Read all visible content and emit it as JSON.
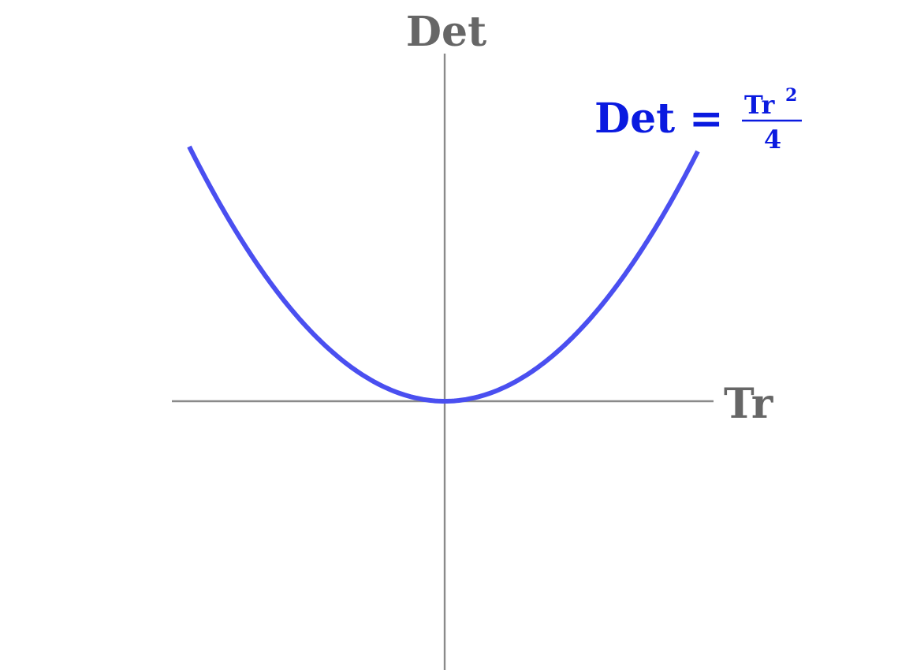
{
  "axes": {
    "x_label": "Tr",
    "y_label": "Det"
  },
  "curve": {
    "label_lhs": "Det",
    "label_eq": "=",
    "label_numerator": "Tr",
    "label_exponent": "2",
    "label_denominator": "4",
    "color": "#4a4ff0"
  }
}
